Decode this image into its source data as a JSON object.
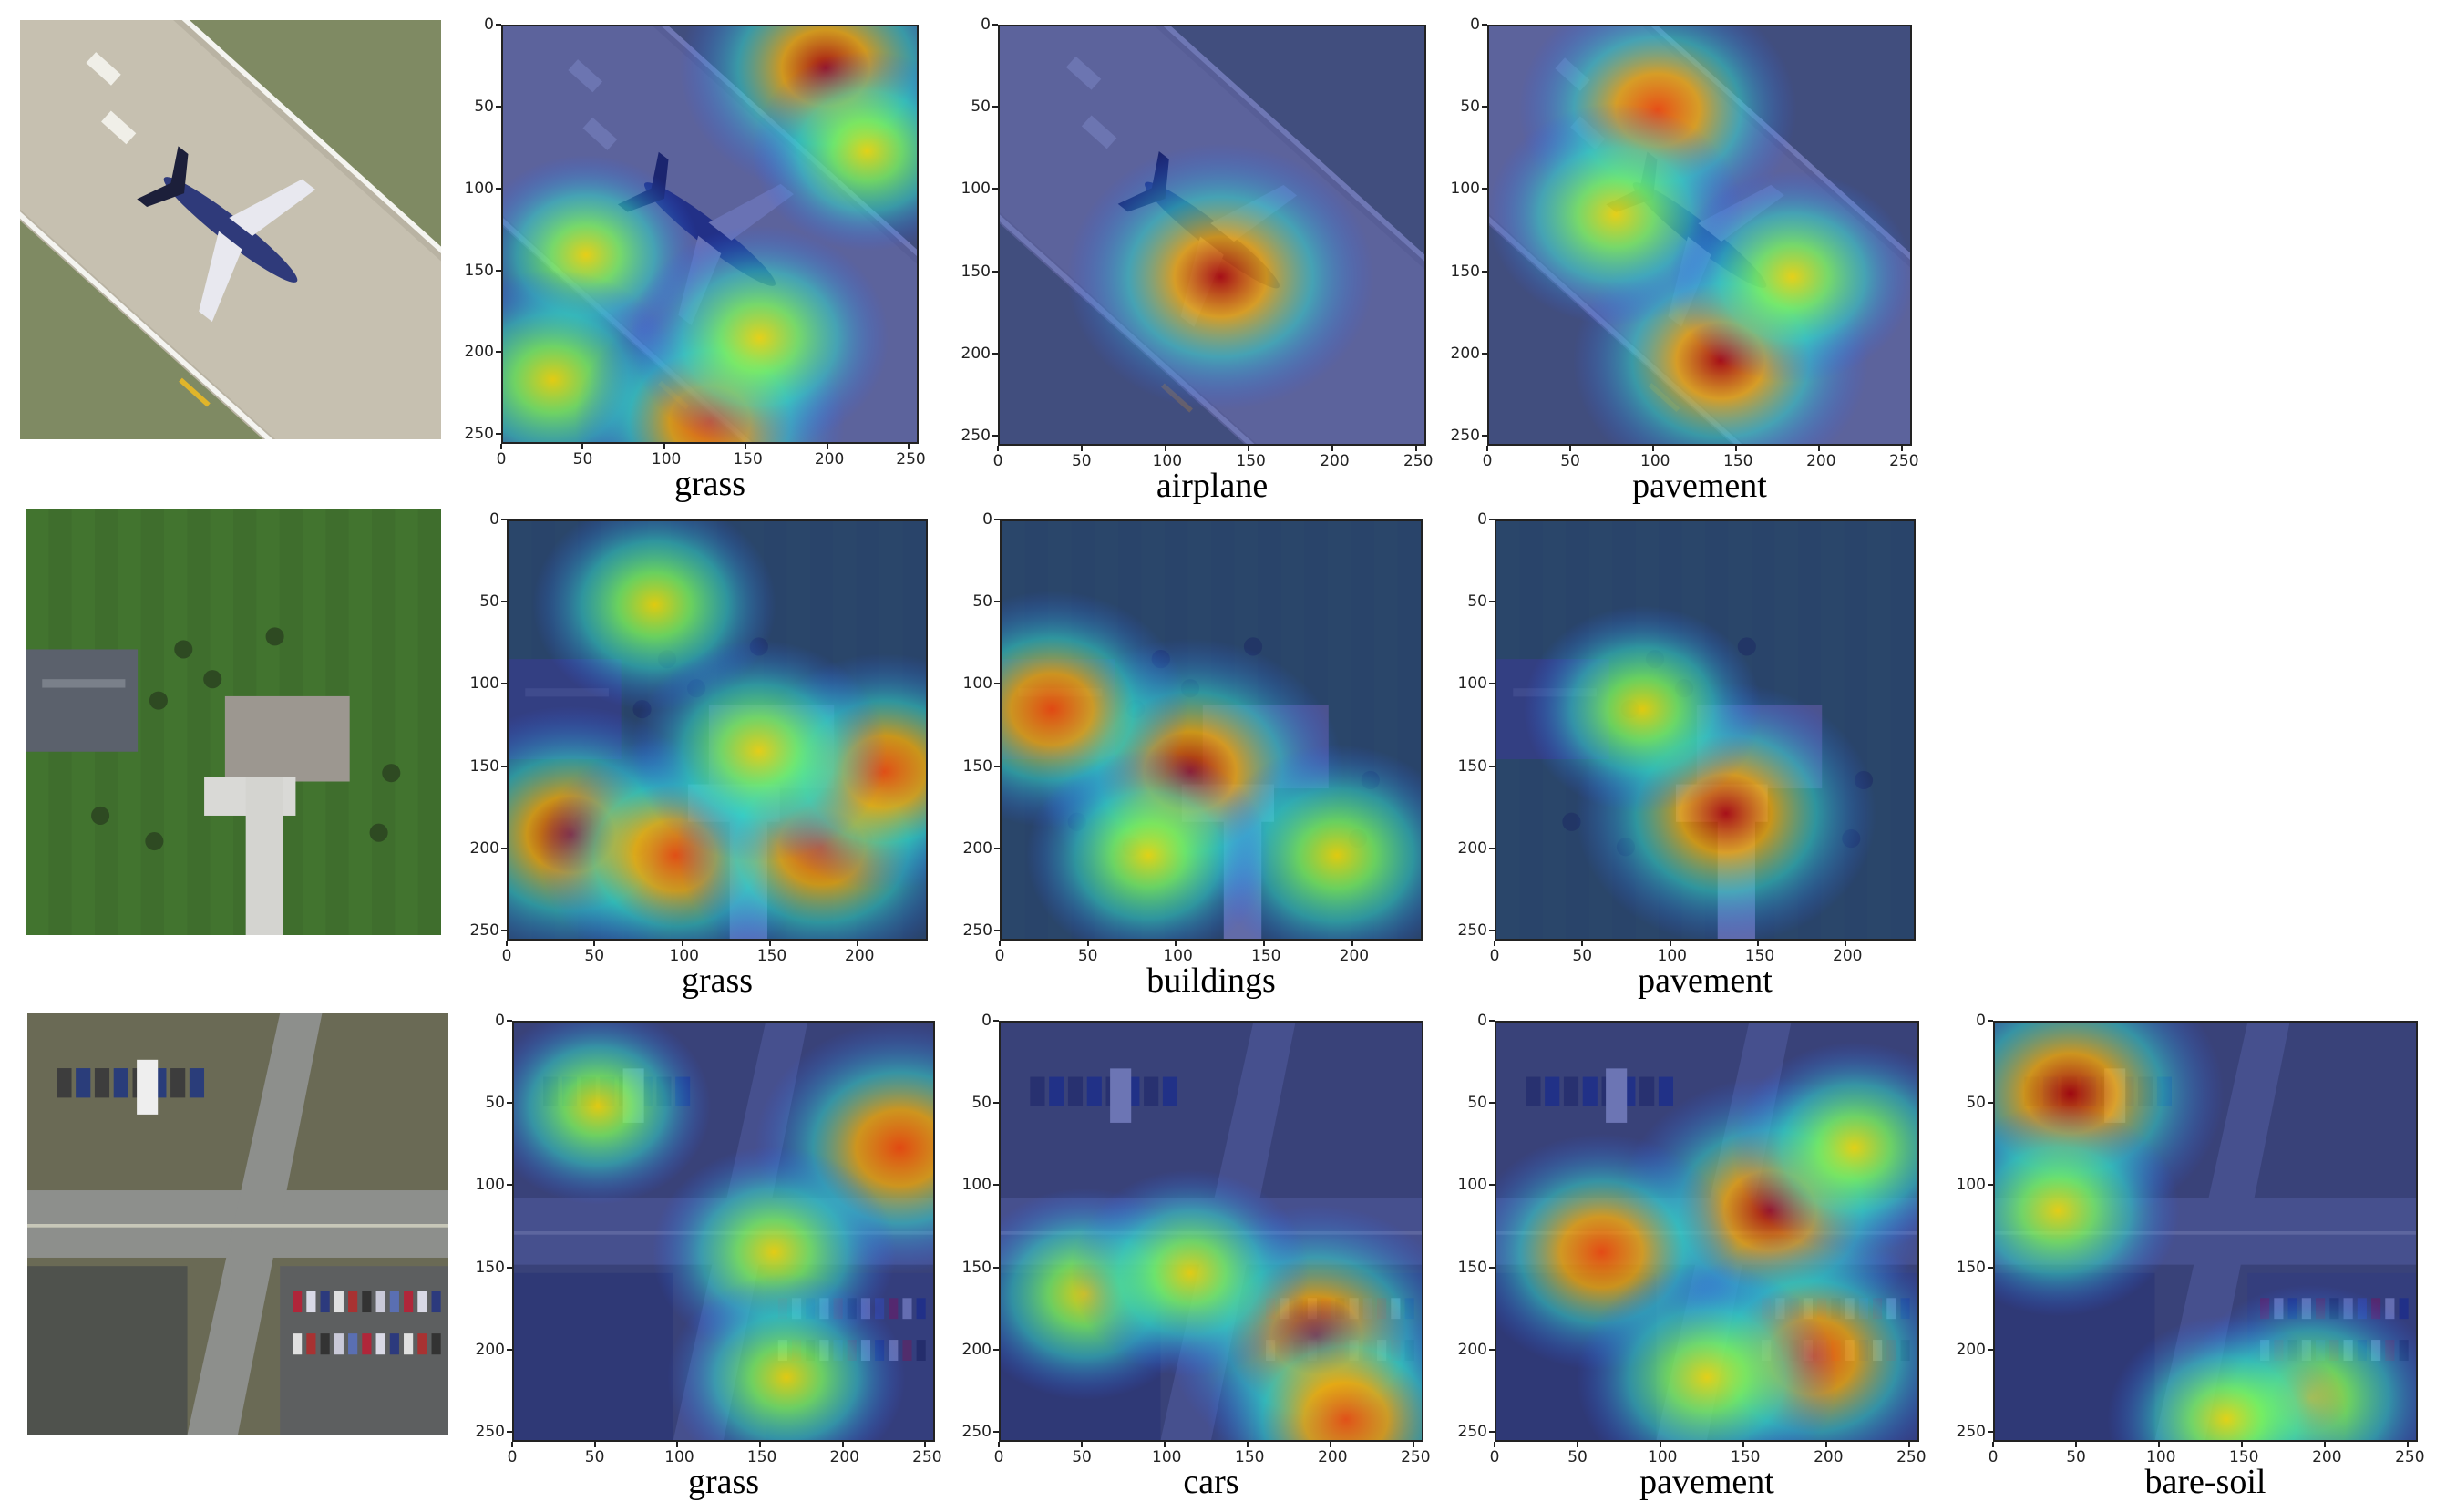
{
  "figure": {
    "rows": [
      {
        "name": "airplane-runway",
        "scene": "runway",
        "panels": [
          {
            "label": "grass",
            "scene": "runway",
            "heat": [
              [
                0.2,
                0.55,
                0.35
              ],
              [
                0.78,
                0.1,
                0.9
              ],
              [
                0.12,
                0.85,
                0.55
              ],
              [
                0.88,
                0.3,
                0.35
              ],
              [
                0.5,
                0.95,
                0.7
              ],
              [
                0.62,
                0.75,
                0.6
              ]
            ]
          },
          {
            "label": "airplane",
            "scene": "runway",
            "heat": [
              [
                0.52,
                0.6,
                1.0
              ]
            ]
          },
          {
            "label": "pavement",
            "scene": "runway",
            "heat": [
              [
                0.4,
                0.2,
                0.75
              ],
              [
                0.55,
                0.8,
                0.9
              ],
              [
                0.3,
                0.45,
                0.55
              ],
              [
                0.72,
                0.6,
                0.45
              ]
            ]
          }
        ]
      },
      {
        "name": "house-lawn",
        "scene": "house",
        "panels": [
          {
            "label": "grass",
            "scene": "house",
            "heat": [
              [
                0.15,
                0.75,
                0.9
              ],
              [
                0.4,
                0.8,
                0.7
              ],
              [
                0.75,
                0.78,
                0.85
              ],
              [
                0.9,
                0.6,
                0.7
              ],
              [
                0.35,
                0.2,
                0.45
              ],
              [
                0.6,
                0.55,
                0.55
              ]
            ]
          },
          {
            "label": "buildings",
            "scene": "house",
            "heat": [
              [
                0.45,
                0.6,
                1.0
              ],
              [
                0.12,
                0.45,
                0.7
              ],
              [
                0.8,
                0.8,
                0.55
              ],
              [
                0.35,
                0.8,
                0.45
              ]
            ]
          },
          {
            "label": "pavement",
            "scene": "house",
            "heat": [
              [
                0.55,
                0.7,
                0.95
              ],
              [
                0.35,
                0.45,
                0.4
              ]
            ]
          }
        ]
      },
      {
        "name": "road-intersection",
        "scene": "intersection",
        "panels": [
          {
            "label": "grass",
            "scene": "intersection",
            "heat": [
              [
                0.92,
                0.3,
                0.85
              ],
              [
                0.62,
                0.55,
                0.45
              ],
              [
                0.2,
                0.2,
                0.3
              ],
              [
                0.65,
                0.85,
                0.4
              ]
            ]
          },
          {
            "label": "cars",
            "scene": "intersection",
            "heat": [
              [
                0.75,
                0.75,
                0.95
              ],
              [
                0.82,
                0.95,
                0.75
              ],
              [
                0.2,
                0.65,
                0.45
              ],
              [
                0.45,
                0.6,
                0.4
              ]
            ]
          },
          {
            "label": "pavement",
            "scene": "intersection",
            "heat": [
              [
                0.65,
                0.45,
                1.0
              ],
              [
                0.25,
                0.55,
                0.7
              ],
              [
                0.75,
                0.8,
                0.85
              ],
              [
                0.5,
                0.85,
                0.6
              ],
              [
                0.85,
                0.3,
                0.45
              ]
            ]
          },
          {
            "label": "bare-soil",
            "scene": "intersection",
            "heat": [
              [
                0.18,
                0.17,
                1.0
              ],
              [
                0.75,
                0.9,
                0.6
              ],
              [
                0.15,
                0.45,
                0.45
              ],
              [
                0.55,
                0.95,
                0.4
              ]
            ]
          }
        ]
      }
    ],
    "xticks": [
      "0",
      "50",
      "100",
      "150",
      "200",
      "250"
    ],
    "xticks_short": [
      "0",
      "50",
      "100",
      "150",
      "200"
    ],
    "yticks": [
      "0",
      "50",
      "100",
      "150",
      "200",
      "250"
    ]
  }
}
